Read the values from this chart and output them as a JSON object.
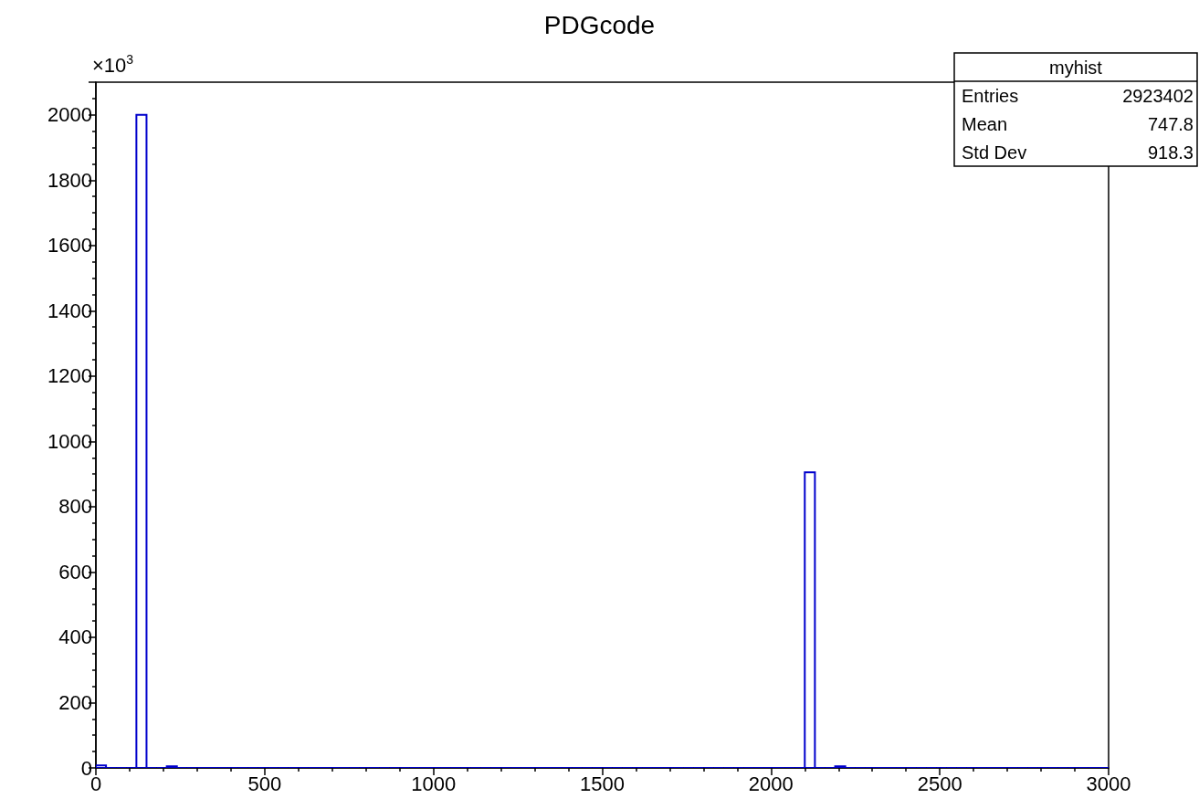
{
  "chart_data": {
    "type": "histogram",
    "title": "PDGcode",
    "bins": [
      0,
      30,
      60,
      90,
      120,
      150,
      180,
      210,
      240,
      270,
      300,
      330,
      360,
      390,
      420,
      450,
      480,
      510,
      540,
      570,
      600,
      630,
      660,
      690,
      720,
      750,
      780,
      810,
      840,
      870,
      900,
      930,
      960,
      990,
      1020,
      1050,
      1080,
      1110,
      1140,
      1170,
      1200,
      1230,
      1260,
      1290,
      1320,
      1350,
      1380,
      1410,
      1440,
      1470,
      1500,
      1530,
      1560,
      1590,
      1620,
      1650,
      1680,
      1710,
      1740,
      1770,
      1800,
      1830,
      1860,
      1890,
      1920,
      1950,
      1980,
      2010,
      2040,
      2070,
      2100,
      2130,
      2160,
      2190,
      2220,
      2250,
      2280,
      2310,
      2340,
      2370,
      2400,
      2430,
      2460,
      2490,
      2520,
      2550,
      2580,
      2610,
      2640,
      2670,
      2700,
      2730,
      2760,
      2790,
      2820,
      2850,
      2880,
      2910,
      2940,
      2970,
      3000
    ],
    "values": [
      8,
      0,
      0,
      0,
      2000,
      0,
      0,
      5,
      0,
      0,
      0,
      0,
      0,
      0,
      0,
      0,
      0,
      0,
      0,
      0,
      0,
      0,
      0,
      0,
      0,
      0,
      0,
      0,
      0,
      0,
      0,
      0,
      0,
      0,
      0,
      0,
      0,
      0,
      0,
      0,
      0,
      0,
      0,
      0,
      0,
      0,
      0,
      0,
      0,
      0,
      0,
      0,
      0,
      0,
      0,
      0,
      0,
      0,
      0,
      0,
      0,
      0,
      0,
      0,
      0,
      0,
      0,
      0,
      0,
      0,
      905,
      0,
      0,
      5,
      0,
      0,
      0,
      0,
      0,
      0,
      0,
      0,
      0,
      0,
      0,
      0,
      0,
      0,
      0,
      0,
      0,
      0,
      0,
      0,
      0,
      0,
      0,
      0,
      0,
      0
    ],
    "color": "#0000cc",
    "xlim": [
      0,
      3000
    ],
    "xticks": [
      0,
      500,
      1000,
      1500,
      2000,
      2500,
      3000
    ],
    "ylim": [
      0,
      2100
    ],
    "yticks": [
      0,
      200,
      400,
      600,
      800,
      1000,
      1200,
      1400,
      1600,
      1800,
      2000
    ],
    "grid": false,
    "annotations": [
      "×10$^{3}$",
      "myhist",
      "Entries",
      "2923402",
      "Mean",
      "747.8",
      "Std Dev",
      "918.3"
    ]
  }
}
